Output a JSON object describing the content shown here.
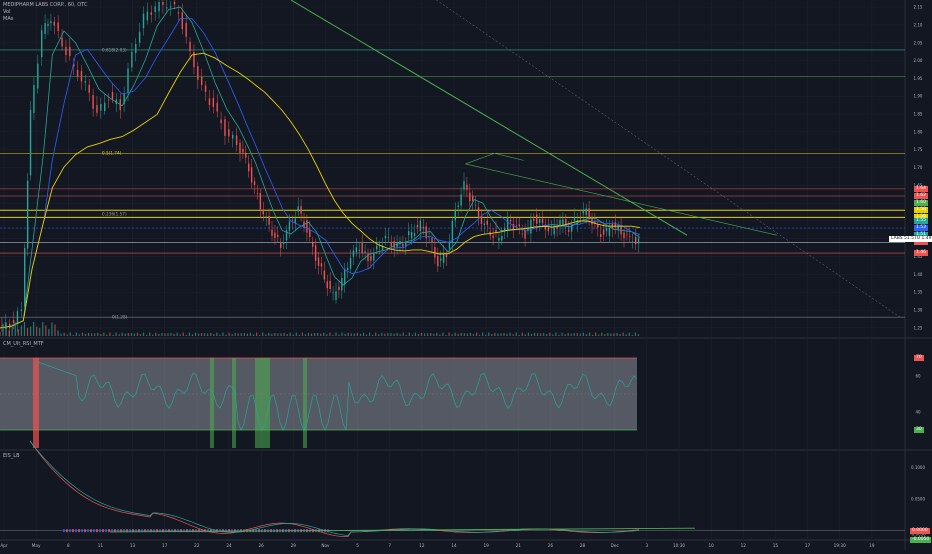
{
  "symbol_header": "MEDIPHARM LABS CORP., 60, OTC",
  "indicator_labels": [
    "Vol",
    "MAs"
  ],
  "panes": [
    {
      "name": "price",
      "ticks": [
        "2.15",
        "2.10",
        "2.05",
        "2.00",
        "1.95",
        "1.90",
        "1.85",
        "1.80",
        "1.75",
        "1.70",
        "1.65",
        "1.60",
        "1.55",
        "1.50",
        "1.45",
        "1.40",
        "1.35",
        "1.30",
        "1.25"
      ]
    },
    {
      "name": "rsi",
      "label": "CM_Ult_RSI_MTF",
      "ticks": [
        "70",
        "60",
        "40",
        "30"
      ]
    },
    {
      "name": "osc",
      "label": "EIS_LB",
      "ticks": [
        "0.1000",
        "0.0500",
        "0.0000",
        "-0.0050"
      ]
    }
  ],
  "fib_labels": [
    "0.618(2.03)",
    "0.5(1.74)",
    "0.236(1.57)",
    "0(1.28)"
  ],
  "price_tags": [
    {
      "text": "1.64",
      "color": "#ef5350"
    },
    {
      "text": "1.62",
      "color": "#ef5350"
    },
    {
      "text": "1.60",
      "color": "#4caf50"
    },
    {
      "text": "1.58",
      "color": "#e8d000"
    },
    {
      "text": "1.56",
      "color": "#e8d000"
    },
    {
      "text": "1.55",
      "color": "#26a69a"
    },
    {
      "text": "1.53",
      "color": "#2962ff"
    },
    {
      "text": "1.51",
      "color": "#26a69a"
    },
    {
      "text": "1.49",
      "color": "#ef5350"
    },
    {
      "text": "1.46",
      "color": "#ef5350"
    }
  ],
  "last_price_label": "LABS 51.5TU",
  "last_price_value": "1.49",
  "rsi_tags": [
    {
      "text": "70",
      "color": "#ef5350"
    },
    {
      "text": "30",
      "color": "#4caf50"
    }
  ],
  "osc_tags": [
    {
      "text": "0.0000",
      "color": "#ef5350"
    },
    {
      "text": "-0.0050",
      "color": "#4caf50"
    }
  ],
  "x_ticks": [
    "Apr",
    "May",
    "8",
    "11",
    "13",
    "17",
    "22",
    "24",
    "26",
    "29",
    "Nov",
    "5",
    "7",
    "12",
    "14",
    "19",
    "21",
    "26",
    "28",
    "Dec",
    "3",
    "10:30",
    "10",
    "12",
    "15",
    "17",
    "19:30",
    "19"
  ],
  "chart_data": {
    "type": "candlestick",
    "title": "MEDIPHARM LABS CORP., 60, OTC",
    "y_range": [
      1.23,
      2.17
    ],
    "horizontal_levels": [
      2.03,
      1.955,
      1.74,
      1.64,
      1.62,
      1.58,
      1.56,
      1.53,
      1.49,
      1.46,
      1.28
    ],
    "close_path": [
      [
        0,
        1.25
      ],
      [
        4,
        1.26
      ],
      [
        8,
        1.3
      ],
      [
        11,
        1.85
      ],
      [
        15,
        2.08
      ],
      [
        18,
        2.12
      ],
      [
        22,
        2.05
      ],
      [
        26,
        1.98
      ],
      [
        30,
        1.93
      ],
      [
        34,
        1.85
      ],
      [
        38,
        1.9
      ],
      [
        42,
        1.87
      ],
      [
        46,
        2.02
      ],
      [
        50,
        2.12
      ],
      [
        54,
        2.15
      ],
      [
        58,
        2.16
      ],
      [
        62,
        2.14
      ],
      [
        66,
        2.02
      ],
      [
        70,
        1.92
      ],
      [
        74,
        1.87
      ],
      [
        78,
        1.8
      ],
      [
        82,
        1.77
      ],
      [
        85,
        1.72
      ],
      [
        88,
        1.64
      ],
      [
        91,
        1.57
      ],
      [
        94,
        1.52
      ],
      [
        97,
        1.48
      ],
      [
        100,
        1.54
      ],
      [
        103,
        1.58
      ],
      [
        106,
        1.52
      ],
      [
        109,
        1.45
      ],
      [
        112,
        1.39
      ],
      [
        115,
        1.34
      ],
      [
        118,
        1.38
      ],
      [
        121,
        1.45
      ],
      [
        124,
        1.48
      ],
      [
        127,
        1.44
      ],
      [
        130,
        1.47
      ],
      [
        133,
        1.5
      ],
      [
        136,
        1.48
      ],
      [
        139,
        1.49
      ],
      [
        142,
        1.52
      ],
      [
        145,
        1.54
      ],
      [
        148,
        1.5
      ],
      [
        151,
        1.43
      ],
      [
        154,
        1.46
      ],
      [
        157,
        1.58
      ],
      [
        160,
        1.65
      ],
      [
        163,
        1.6
      ],
      [
        166,
        1.55
      ],
      [
        169,
        1.52
      ],
      [
        172,
        1.5
      ],
      [
        175,
        1.55
      ],
      [
        178,
        1.53
      ],
      [
        181,
        1.51
      ],
      [
        184,
        1.56
      ],
      [
        187,
        1.54
      ],
      [
        190,
        1.52
      ],
      [
        193,
        1.55
      ],
      [
        196,
        1.53
      ],
      [
        199,
        1.56
      ],
      [
        202,
        1.58
      ],
      [
        205,
        1.53
      ],
      [
        208,
        1.51
      ],
      [
        211,
        1.54
      ],
      [
        214,
        1.52
      ],
      [
        217,
        1.5
      ],
      [
        220,
        1.49
      ]
    ],
    "rsi": {
      "upper": 70,
      "lower": 30,
      "range": [
        20,
        80
      ]
    },
    "osc": {
      "range": [
        -0.01,
        0.12
      ]
    }
  }
}
